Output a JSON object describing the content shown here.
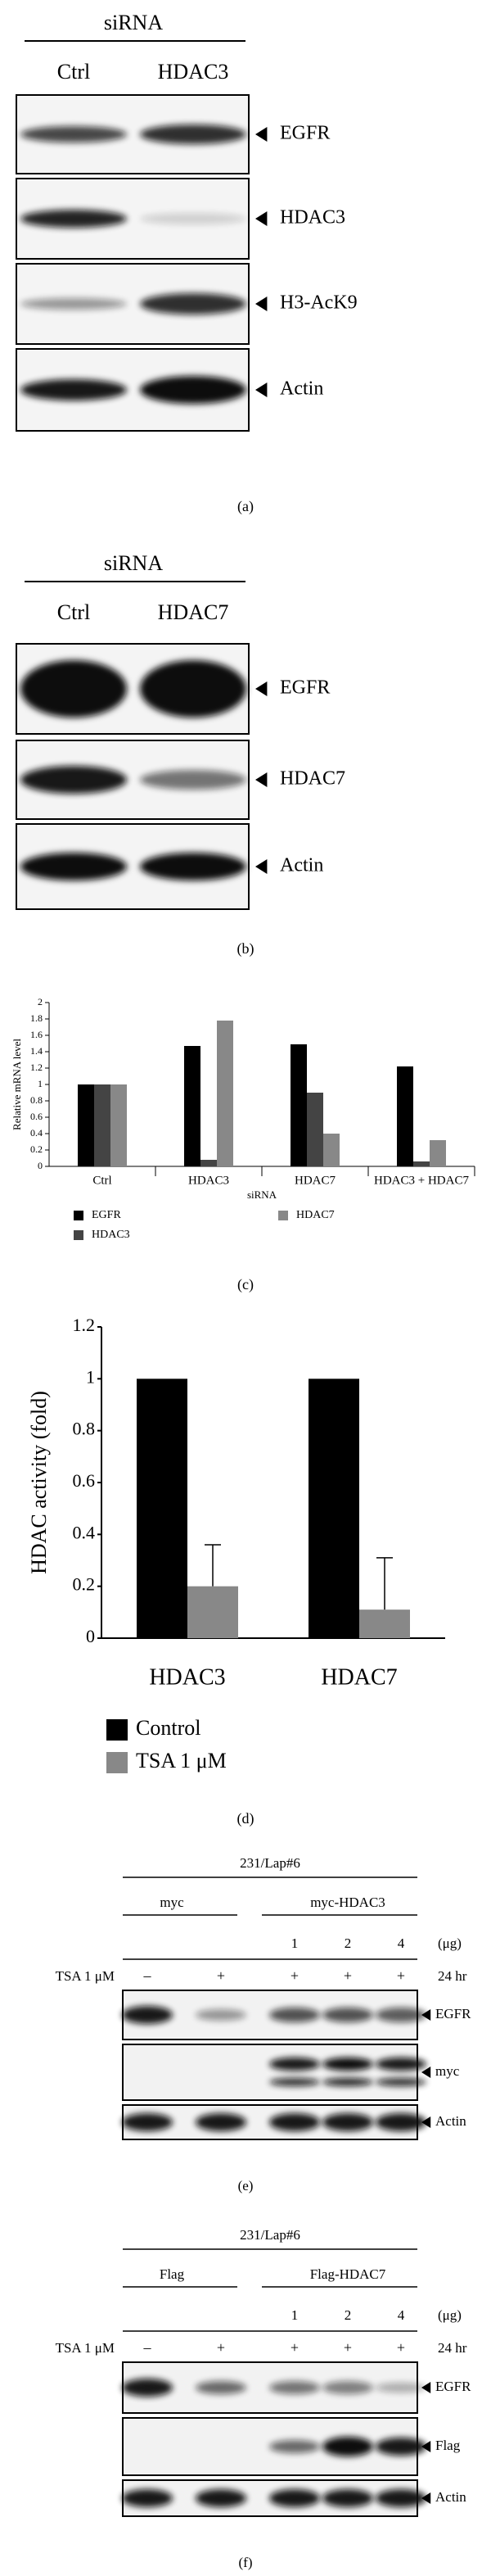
{
  "panel_a": {
    "header": "siRNA",
    "lanes": [
      "Ctrl",
      "HDAC3"
    ],
    "blots": [
      "EGFR",
      "HDAC3",
      "H3-AcK9",
      "Actin"
    ],
    "caption": "(a)"
  },
  "panel_b": {
    "header": "siRNA",
    "lanes": [
      "Ctrl",
      "HDAC7"
    ],
    "blots": [
      "EGFR",
      "HDAC7",
      "Actin"
    ],
    "caption": "(b)"
  },
  "chart_data": [
    {
      "type": "bar",
      "ylabel": "Relative mRNA level",
      "xlabel": "siRNA",
      "categories": [
        "Ctrl",
        "HDAC3",
        "HDAC7",
        "HDAC3 + HDAC7"
      ],
      "series": [
        {
          "name": "EGFR",
          "color": "#000000",
          "values": [
            1,
            1.47,
            1.49,
            1.22
          ]
        },
        {
          "name": "HDAC3",
          "color": "#444444",
          "values": [
            1,
            0.08,
            0.9,
            0.06
          ]
        },
        {
          "name": "HDAC7",
          "color": "#888888",
          "values": [
            1,
            1.78,
            0.4,
            0.32
          ]
        }
      ],
      "ylim": [
        0,
        2
      ],
      "yticks": [
        0,
        0.2,
        0.4,
        0.6,
        0.8,
        1,
        1.2,
        1.4,
        1.6,
        1.8,
        2
      ],
      "grid": false,
      "caption": "(c)"
    },
    {
      "type": "bar",
      "ylabel": "HDAC activity (fold)",
      "categories": [
        "HDAC3",
        "HDAC7"
      ],
      "series": [
        {
          "name": "Control",
          "color": "#000000",
          "values": [
            1,
            1
          ]
        },
        {
          "name": "TSA 1 μM",
          "color": "#888888",
          "values": [
            0.2,
            0.11
          ],
          "errors": [
            0.16,
            0.2
          ]
        }
      ],
      "ylim": [
        0,
        1.2
      ],
      "yticks": [
        0,
        0.2,
        0.4,
        0.6,
        0.8,
        1,
        1.2
      ],
      "grid": false,
      "caption": "(d)"
    }
  ],
  "panel_e": {
    "cell_line": "231/Lap#6",
    "groups": [
      "myc",
      "myc-HDAC3"
    ],
    "doses": [
      "1",
      "2",
      "4"
    ],
    "dose_unit": "(μg)",
    "treatment": "TSA 1 μM",
    "signs": [
      "–",
      "+",
      "+",
      "+",
      "+"
    ],
    "time": "24 hr",
    "blots": [
      "EGFR",
      "myc",
      "Actin"
    ],
    "caption": "(e)"
  },
  "panel_f": {
    "cell_line": "231/Lap#6",
    "groups": [
      "Flag",
      "Flag-HDAC7"
    ],
    "doses": [
      "1",
      "2",
      "4"
    ],
    "dose_unit": "(μg)",
    "treatment": "TSA 1 μM",
    "signs": [
      "–",
      "+",
      "+",
      "+",
      "+"
    ],
    "time": "24 hr",
    "blots": [
      "EGFR",
      "Flag",
      "Actin"
    ],
    "caption": "(f)"
  }
}
